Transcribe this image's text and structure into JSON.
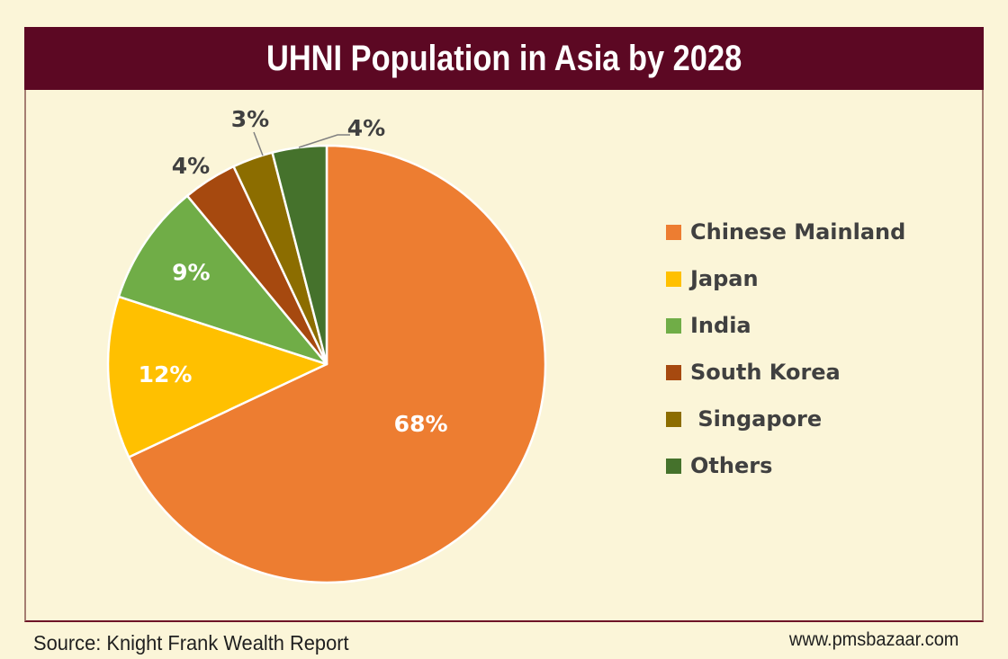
{
  "header": {
    "title": "UHNI Population in Asia by 2028"
  },
  "chart_data": {
    "type": "pie",
    "title": "UHNI Population in Asia by 2028",
    "categories": [
      "Chinese Mainland",
      "Japan",
      "India",
      "South Korea",
      " Singapore",
      "Others"
    ],
    "values": [
      68,
      12,
      9,
      4,
      3,
      4
    ],
    "slice_labels": [
      "68%",
      "12%",
      "9%",
      "4%",
      "3%",
      "4%"
    ],
    "colors": [
      "#ED7D31",
      "#FFC000",
      "#70AD47",
      "#A6490F",
      "#8C6D00",
      "#45722C"
    ],
    "start_angle": "12-o-clock",
    "direction": "clockwise",
    "legend_position": "right",
    "inside_label_color": "#FFFFFF",
    "outside_label_color": "#404040"
  },
  "footer": {
    "source": "Source: Knight Frank Wealth Report",
    "website": "www.pmsbazaar.com"
  },
  "theme": {
    "page_background": "#FBF5D8",
    "header_background": "#5C0823",
    "header_text": "#FFFFFF",
    "frame_border": "#A57E72",
    "frame_border_bottom": "#6E1427",
    "slice_divider": "#FFFFFF",
    "leader_line": "#808080",
    "legend_text": "#404040",
    "footer_text": "#1F1F1F"
  }
}
